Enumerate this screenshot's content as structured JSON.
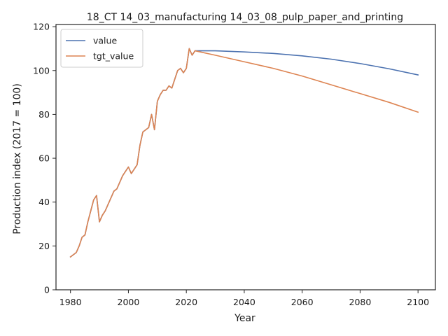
{
  "chart_data": {
    "type": "line",
    "title": "18_CT 14_03_manufacturing 14_03_08_pulp_paper_and_printing",
    "xlabel": "Year",
    "ylabel": "Production index (2017 = 100)",
    "xlim": [
      1975,
      2106
    ],
    "ylim": [
      0,
      121
    ],
    "xticks": [
      1980,
      2000,
      2020,
      2040,
      2060,
      2080,
      2100
    ],
    "yticks": [
      0,
      20,
      40,
      60,
      80,
      100,
      120
    ],
    "grid": false,
    "legend": "top-left",
    "series": [
      {
        "name": "value",
        "color": "#4c72b0",
        "x": [
          1980,
          1981,
          1982,
          1983,
          1984,
          1985,
          1986,
          1987,
          1988,
          1989,
          1990,
          1991,
          1992,
          1993,
          1994,
          1995,
          1996,
          1997,
          1998,
          1999,
          2000,
          2001,
          2002,
          2003,
          2004,
          2005,
          2006,
          2007,
          2008,
          2009,
          2010,
          2011,
          2012,
          2013,
          2014,
          2015,
          2016,
          2017,
          2018,
          2019,
          2020,
          2021,
          2022,
          2023,
          2030,
          2040,
          2050,
          2060,
          2070,
          2080,
          2090,
          2100
        ],
        "y": [
          15,
          16,
          17,
          20,
          24,
          25,
          31,
          36,
          41,
          43,
          31,
          34,
          36,
          39,
          42,
          45,
          46,
          49,
          52,
          54,
          56,
          53,
          55,
          57,
          66,
          72,
          73,
          74,
          80,
          73,
          86,
          89,
          91,
          91,
          93,
          92,
          96,
          100,
          101,
          99,
          101,
          110,
          107,
          109,
          109,
          108.5,
          107.8,
          106.7,
          105.2,
          103.2,
          100.8,
          98
        ]
      },
      {
        "name": "tgt_value",
        "color": "#dd8452",
        "x": [
          1980,
          1981,
          1982,
          1983,
          1984,
          1985,
          1986,
          1987,
          1988,
          1989,
          1990,
          1991,
          1992,
          1993,
          1994,
          1995,
          1996,
          1997,
          1998,
          1999,
          2000,
          2001,
          2002,
          2003,
          2004,
          2005,
          2006,
          2007,
          2008,
          2009,
          2010,
          2011,
          2012,
          2013,
          2014,
          2015,
          2016,
          2017,
          2018,
          2019,
          2020,
          2021,
          2022,
          2023,
          2030,
          2040,
          2050,
          2060,
          2070,
          2080,
          2090,
          2100
        ],
        "y": [
          15,
          16,
          17,
          20,
          24,
          25,
          31,
          36,
          41,
          43,
          31,
          34,
          36,
          39,
          42,
          45,
          46,
          49,
          52,
          54,
          56,
          53,
          55,
          57,
          66,
          72,
          73,
          74,
          80,
          73,
          86,
          89,
          91,
          91,
          93,
          92,
          96,
          100,
          101,
          99,
          101,
          110,
          107,
          109,
          107,
          104,
          101,
          97.5,
          93.5,
          89.5,
          85.5,
          81
        ]
      }
    ]
  }
}
